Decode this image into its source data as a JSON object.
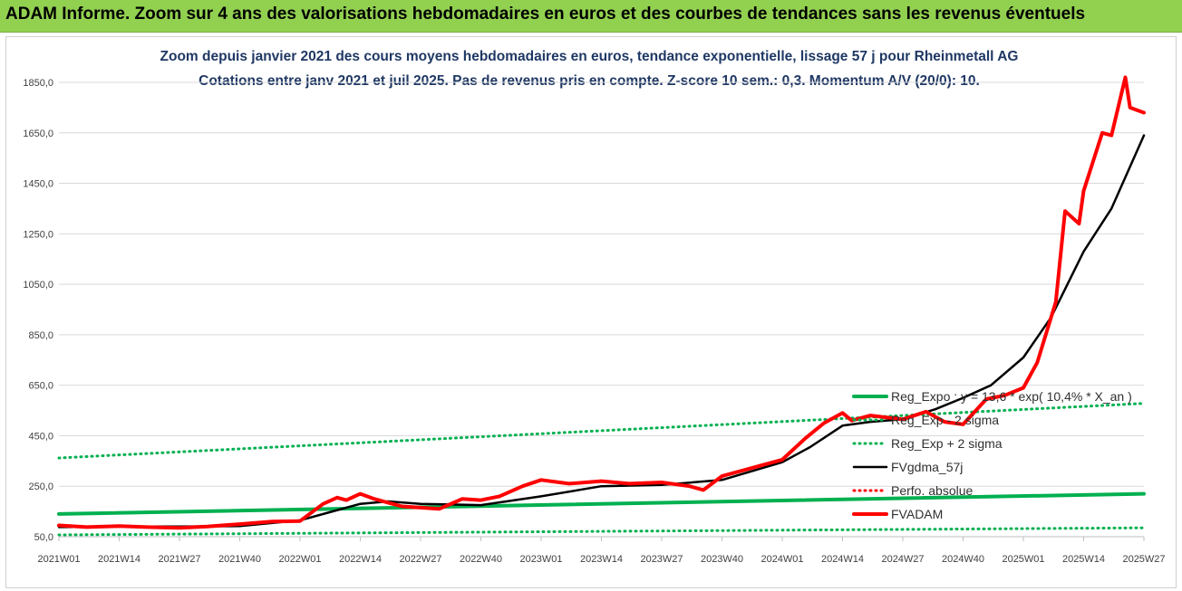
{
  "banner": {
    "title": "ADAM Informe. Zoom sur 4 ans des valorisations hebdomadaires en euros et des courbes de tendances sans les revenus éventuels"
  },
  "colors": {
    "banner_bg": "#92d050",
    "title_text": "#1f3864",
    "reg_expo": "#00b050",
    "sigma": "#00b050",
    "fvgdma": "#000000",
    "perfo": "#ff0000",
    "fvadam": "#ff0000",
    "grid": "#d9d9d9"
  },
  "chart_data": {
    "type": "line",
    "title": "Zoom depuis janvier 2021 des cours moyens hebdomadaires en euros, tendance exponentielle, lissage 57 j pour Rheinmetall AG",
    "subtitle": "Cotations entre janv 2021 et juil 2025. Pas de revenus pris en compte. Z-score 10 sem.: 0,3. Momentum A/V (20/0): 10.",
    "ylim": [
      50,
      1850
    ],
    "y_ticks": [
      "50,0",
      "250,0",
      "450,0",
      "650,0",
      "850,0",
      "1050,0",
      "1250,0",
      "1450,0",
      "1650,0",
      "1850,0"
    ],
    "x_ticks": [
      "2021W01",
      "2021W14",
      "2021W27",
      "2021W40",
      "2022W01",
      "2022W14",
      "2022W27",
      "2022W40",
      "2023W01",
      "2023W14",
      "2023W27",
      "2023W40",
      "2024W01",
      "2024W14",
      "2024W27",
      "2024W40",
      "2025W01",
      "2025W14",
      "2025W27"
    ],
    "grid": "horizontal",
    "legend_position": "bottom-right",
    "series": [
      {
        "name": "Reg_Expo : y = 13,6 * exp( 10,4% * X_an )",
        "style": "solid-thick",
        "x": [
          "2021W01",
          "2025W27"
        ],
        "y": [
          140,
          220
        ]
      },
      {
        "name": "Reg_Exp - 2 sigma",
        "style": "dotted",
        "x": [
          "2021W01",
          "2025W27"
        ],
        "y": [
          57,
          85
        ]
      },
      {
        "name": "Reg_Exp + 2 sigma",
        "style": "dotted",
        "x": [
          "2021W01",
          "2025W27"
        ],
        "y": [
          362,
          578
        ]
      },
      {
        "name": "FVgdma_57j",
        "style": "solid",
        "x": [
          "2021W01",
          "2021W14",
          "2021W27",
          "2021W40",
          "2022W01",
          "2022W07",
          "2022W14",
          "2022W20",
          "2022W27",
          "2022W40",
          "2023W01",
          "2023W14",
          "2023W27",
          "2023W40",
          "2024W01",
          "2024W07",
          "2024W14",
          "2024W20",
          "2024W27",
          "2024W34",
          "2024W40",
          "2024W46",
          "2025W01",
          "2025W07",
          "2025W14",
          "2025W20",
          "2025W27"
        ],
        "y": [
          88,
          90,
          90,
          92,
          115,
          145,
          180,
          190,
          180,
          175,
          210,
          250,
          255,
          275,
          345,
          405,
          490,
          505,
          515,
          555,
          600,
          650,
          760,
          920,
          1180,
          1350,
          1640
        ]
      },
      {
        "name": "Perfo. absolue",
        "style": "dotted",
        "x": [],
        "y": []
      },
      {
        "name": "FVADAM",
        "style": "solid-thick",
        "x": [
          "2021W01",
          "2021W07",
          "2021W14",
          "2021W20",
          "2021W27",
          "2021W33",
          "2021W40",
          "2021W47",
          "2022W01",
          "2022W06",
          "2022W09",
          "2022W11",
          "2022W14",
          "2022W17",
          "2022W20",
          "2022W23",
          "2022W27",
          "2022W31",
          "2022W36",
          "2022W40",
          "2022W44",
          "2022W49",
          "2023W01",
          "2023W07",
          "2023W14",
          "2023W20",
          "2023W27",
          "2023W33",
          "2023W36",
          "2023W40",
          "2023W46",
          "2024W01",
          "2024W06",
          "2024W10",
          "2024W14",
          "2024W16",
          "2024W20",
          "2024W27",
          "2024W32",
          "2024W36",
          "2024W40",
          "2024W45",
          "2024W49",
          "2025W01",
          "2025W04",
          "2025W08",
          "2025W10",
          "2025W13",
          "2025W14",
          "2025W18",
          "2025W20",
          "2025W23",
          "2025W24",
          "2025W27"
        ],
        "y": [
          95,
          88,
          92,
          88,
          85,
          90,
          100,
          110,
          112,
          180,
          205,
          195,
          220,
          200,
          185,
          170,
          165,
          160,
          200,
          195,
          210,
          250,
          275,
          260,
          270,
          260,
          265,
          250,
          235,
          290,
          320,
          355,
          440,
          500,
          540,
          510,
          530,
          515,
          545,
          505,
          495,
          595,
          610,
          640,
          740,
          980,
          1340,
          1290,
          1420,
          1650,
          1640,
          1870,
          1750,
          1730
        ]
      }
    ]
  }
}
